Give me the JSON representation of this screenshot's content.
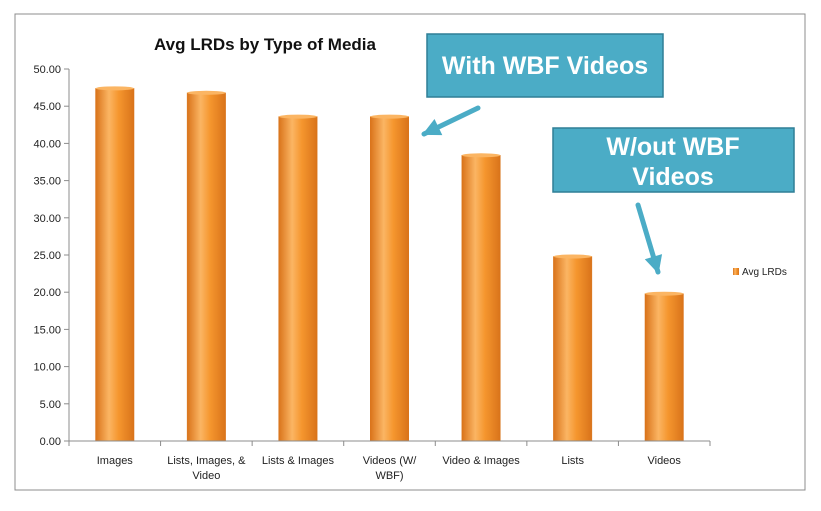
{
  "chart_data": {
    "type": "bar",
    "title": "Avg LRDs by Type of Media",
    "categories": [
      [
        "Images"
      ],
      [
        "Lists, Images, &",
        "Video"
      ],
      [
        "Lists & Images"
      ],
      [
        "Videos (W/",
        "WBF)"
      ],
      [
        "Video & Images"
      ],
      [
        "Lists"
      ],
      [
        "Videos"
      ]
    ],
    "series": [
      {
        "name": "Avg LRDs",
        "values": [
          47.4,
          46.8,
          43.6,
          43.6,
          38.4,
          24.8,
          19.8
        ],
        "color": "#F5962E"
      }
    ],
    "ylim": [
      0,
      50
    ],
    "yticks": [
      "0.00",
      "5.00",
      "10.00",
      "15.00",
      "20.00",
      "25.00",
      "30.00",
      "35.00",
      "40.00",
      "45.00",
      "50.00"
    ],
    "grid": false,
    "legend": "right"
  },
  "annotations": [
    {
      "lines": [
        "With WBF Videos"
      ],
      "points_to": 3
    },
    {
      "lines": [
        "W/out WBF",
        "Videos"
      ],
      "points_to": 6
    }
  ],
  "colors": {
    "bar": "#F5962E",
    "bar_light": "#FBB563",
    "bar_dark": "#D9731A",
    "callout_fill": "#4BACC6",
    "callout_border": "#2F7F96",
    "arrow": "#4BACC6",
    "frame": "#8C8C8C"
  }
}
